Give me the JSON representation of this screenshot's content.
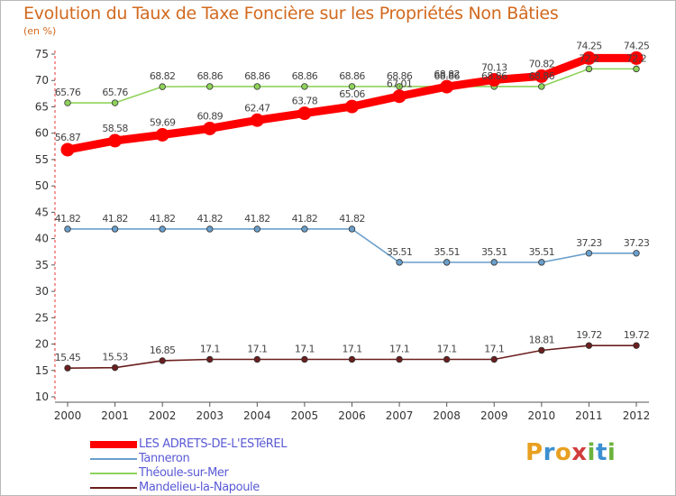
{
  "header": {
    "title": "Evolution du Taux de Taxe Foncière sur les Propriétés Non Bâties",
    "unit": "(en %)"
  },
  "logo": {
    "letters": [
      "P",
      "r",
      "o",
      "x",
      "i",
      "t",
      "i"
    ],
    "colors": [
      "#e8a020",
      "#3c8fd0",
      "#e8a020",
      "#d23c3c",
      "#6cb33e",
      "#3c8fd0",
      "#6cb33e"
    ]
  },
  "chart_data": {
    "type": "line",
    "title": "Evolution du Taux de Taxe Foncière sur les Propriétés Non Bâties",
    "ylabel": "(en %)",
    "xlabel": "",
    "ylim": [
      10,
      75
    ],
    "yticks": [
      10,
      15,
      20,
      25,
      30,
      35,
      40,
      45,
      50,
      55,
      60,
      65,
      70,
      75
    ],
    "categories": [
      "2000",
      "2001",
      "2002",
      "2003",
      "2004",
      "2005",
      "2006",
      "2007",
      "2008",
      "2009",
      "2010",
      "2011",
      "2012"
    ],
    "grid": false,
    "legend_position": "bottom-left",
    "series": [
      {
        "name": "Mandelieu-la-Napoule",
        "color": "#6b1e1e",
        "values": [
          15.45,
          15.53,
          16.85,
          17.1,
          17.1,
          17.1,
          17.1,
          17.1,
          17.1,
          17.1,
          18.81,
          19.72,
          19.72
        ],
        "labels": [
          "15.45",
          "15.53",
          "16.85",
          "17.1",
          "17.1",
          "17.1",
          "17.1",
          "17.1",
          "17.1",
          "17.1",
          "18.81",
          "19.72",
          "19.72"
        ]
      },
      {
        "name": "Tanneron",
        "color": "#6a9fcb",
        "values": [
          41.82,
          41.82,
          41.82,
          41.82,
          41.82,
          41.82,
          41.82,
          35.51,
          35.51,
          35.51,
          35.51,
          37.23,
          37.23
        ],
        "labels": [
          "41.82",
          "41.82",
          "41.82",
          "41.82",
          "41.82",
          "41.82",
          "41.82",
          "35.51",
          "35.51",
          "35.51",
          "35.51",
          "37.23",
          "37.23"
        ]
      },
      {
        "name": "Théoule-sur-Mer",
        "color": "#8ed35a",
        "values": [
          65.76,
          65.76,
          68.82,
          68.86,
          68.86,
          68.86,
          68.86,
          68.86,
          68.86,
          68.86,
          68.86,
          72.2,
          72.2
        ],
        "labels": [
          "65.76",
          "65.76",
          "68.82",
          "68.86",
          "68.86",
          "68.86",
          "68.86",
          "68.86",
          "68.86",
          "68.86",
          "68.86",
          "72.2",
          "72.2"
        ]
      },
      {
        "name": "LES ADRETS-DE-L'ESTéREL",
        "color": "#ff0000",
        "values": [
          56.87,
          58.58,
          59.69,
          60.89,
          62.47,
          63.78,
          65.06,
          67.01,
          68.82,
          70.13,
          70.82,
          74.25,
          74.25
        ],
        "labels": [
          "56.87",
          "58.58",
          "59.69",
          "60.89",
          "62.47",
          "63.78",
          "65.06",
          "67.01",
          "68.82",
          "70.13",
          "70.82",
          "74.25",
          "74.25"
        ]
      }
    ],
    "legend_order": [
      "LES ADRETS-DE-L'ESTéREL",
      "Tanneron",
      "Théoule-sur-Mer",
      "Mandelieu-la-Napoule"
    ]
  }
}
